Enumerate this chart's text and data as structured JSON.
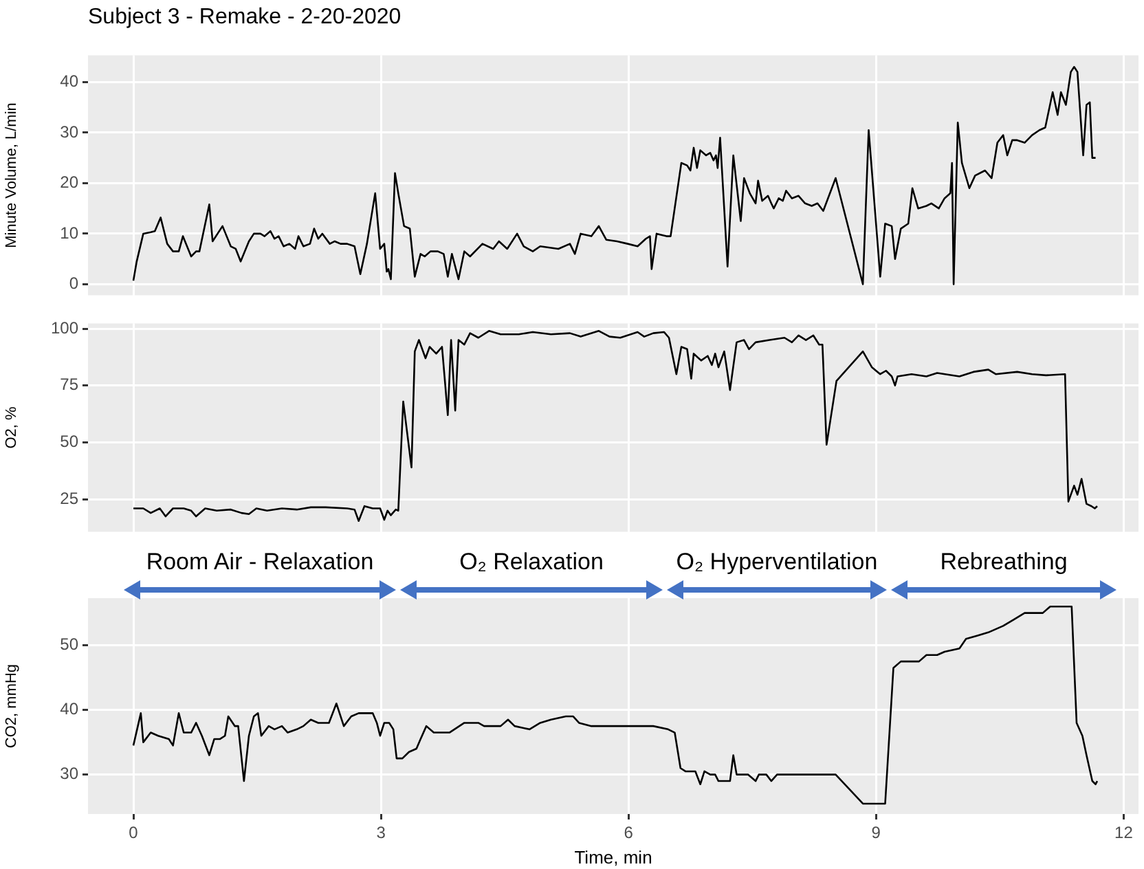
{
  "chart_data": [
    {
      "type": "line",
      "title": "Subject 3 - Remake - 2-20-2020",
      "ylabel": "Minute Volume, L/min",
      "color": "#000000",
      "grid": true,
      "tick_labels": "y",
      "xlim": [
        -0.55,
        12.18
      ],
      "xticks": [
        0,
        3,
        6,
        9,
        12
      ],
      "ylim": [
        -2.2,
        45.3
      ],
      "yticks": [
        0,
        10,
        20,
        30,
        40
      ],
      "x": [
        0,
        0.04,
        0.12,
        0.21,
        0.26,
        0.33,
        0.41,
        0.48,
        0.55,
        0.6,
        0.7,
        0.76,
        0.8,
        0.92,
        0.96,
        1.08,
        1.18,
        1.24,
        1.3,
        1.4,
        1.46,
        1.54,
        1.59,
        1.66,
        1.71,
        1.76,
        1.82,
        1.89,
        1.96,
        2.0,
        2.06,
        2.14,
        2.19,
        2.24,
        2.29,
        2.38,
        2.44,
        2.51,
        2.59,
        2.68,
        2.75,
        2.83,
        2.93,
        2.99,
        3.04,
        3.07,
        3.09,
        3.12,
        3.17,
        3.21,
        3.28,
        3.35,
        3.41,
        3.48,
        3.53,
        3.6,
        3.69,
        3.76,
        3.81,
        3.86,
        3.94,
        4.01,
        4.08,
        4.23,
        4.36,
        4.43,
        4.53,
        4.65,
        4.73,
        4.84,
        4.93,
        5.15,
        5.29,
        5.35,
        5.42,
        5.55,
        5.64,
        5.73,
        5.86,
        5.99,
        6.11,
        6.21,
        6.26,
        6.28,
        6.34,
        6.46,
        6.51,
        6.64,
        6.71,
        6.75,
        6.79,
        6.83,
        6.87,
        6.94,
        6.99,
        7.03,
        7.06,
        7.08,
        7.11,
        7.2,
        7.27,
        7.36,
        7.4,
        7.47,
        7.54,
        7.57,
        7.62,
        7.69,
        7.73,
        7.76,
        7.82,
        7.87,
        7.91,
        7.98,
        8.06,
        8.14,
        8.22,
        8.29,
        8.36,
        8.51,
        8.84,
        8.91,
        9.05,
        9.11,
        9.19,
        9.23,
        9.3,
        9.39,
        9.44,
        9.51,
        9.61,
        9.67,
        9.76,
        9.83,
        9.9,
        9.92,
        9.94,
        9.99,
        10.04,
        10.13,
        10.2,
        10.32,
        10.4,
        10.47,
        10.54,
        10.59,
        10.65,
        10.71,
        10.8,
        10.89,
        10.98,
        11.05,
        11.14,
        11.2,
        11.24,
        11.3,
        11.36,
        11.4,
        11.44,
        11.51,
        11.55,
        11.59,
        11.62,
        11.66
      ],
      "values": [
        0.7,
        4.5,
        10,
        10.3,
        10.5,
        13.2,
        8,
        6.5,
        6.5,
        9.5,
        5.5,
        6.5,
        6.5,
        15.8,
        8.5,
        11.5,
        7.5,
        7,
        4.5,
        8.5,
        10,
        10,
        9.5,
        10.5,
        9,
        9.5,
        7.5,
        8,
        7,
        9.5,
        7.5,
        8,
        11,
        9,
        10,
        8,
        8.5,
        8,
        8,
        7.5,
        2,
        8,
        18,
        7,
        8,
        2.5,
        3,
        1,
        22,
        18,
        11.5,
        11,
        1.5,
        6,
        5.5,
        6.5,
        6.5,
        6,
        1.5,
        6,
        1,
        6.5,
        5.5,
        8,
        7,
        8.5,
        7,
        10,
        7.5,
        6.5,
        7.5,
        7,
        8,
        6,
        10,
        9.5,
        11.5,
        8.8,
        8.5,
        8,
        7.5,
        9,
        9.5,
        3,
        10,
        9.5,
        9.5,
        24,
        23.5,
        22.5,
        27,
        23,
        26.5,
        25.5,
        26,
        24.5,
        25.5,
        23,
        29,
        3.5,
        25.5,
        12.5,
        21,
        18,
        16,
        20.5,
        16.5,
        17.5,
        16,
        15,
        17,
        16.5,
        18.5,
        17,
        17.5,
        16,
        15.5,
        16,
        14.5,
        21,
        0,
        30.5,
        1.5,
        12,
        11.5,
        5,
        11,
        12,
        19,
        15,
        15.5,
        16,
        15,
        17,
        18,
        24,
        0,
        32,
        24,
        19,
        21.5,
        22.5,
        21,
        28,
        29.5,
        25.5,
        28.5,
        28.5,
        28,
        29.5,
        30.5,
        31,
        38,
        33.5,
        38,
        35.5,
        42,
        43,
        42,
        25.5,
        35.5,
        36,
        25,
        25
      ]
    },
    {
      "type": "line",
      "ylabel": "O2, %",
      "color": "#000000",
      "grid": true,
      "tick_labels": "y",
      "xlim": [
        -0.55,
        12.18
      ],
      "xticks": [
        0,
        3,
        6,
        9,
        12
      ],
      "ylim": [
        10.7,
        102.3
      ],
      "yticks": [
        25,
        50,
        75,
        100
      ],
      "x": [
        0,
        0.12,
        0.21,
        0.32,
        0.39,
        0.48,
        0.61,
        0.7,
        0.76,
        0.87,
        1.01,
        1.18,
        1.31,
        1.4,
        1.49,
        1.62,
        1.8,
        1.98,
        2.15,
        2.33,
        2.59,
        2.68,
        2.73,
        2.8,
        2.9,
        2.99,
        3.04,
        3.08,
        3.12,
        3.18,
        3.21,
        3.27,
        3.37,
        3.41,
        3.46,
        3.54,
        3.59,
        3.67,
        3.74,
        3.81,
        3.85,
        3.9,
        3.94,
        4.01,
        4.08,
        4.18,
        4.31,
        4.45,
        4.67,
        4.84,
        5.06,
        5.29,
        5.42,
        5.64,
        5.77,
        5.9,
        6.11,
        6.19,
        6.3,
        6.43,
        6.49,
        6.58,
        6.64,
        6.71,
        6.76,
        6.79,
        6.88,
        6.96,
        7.01,
        7.05,
        7.09,
        7.16,
        7.23,
        7.31,
        7.4,
        7.46,
        7.54,
        7.71,
        7.89,
        7.98,
        8.06,
        8.15,
        8.24,
        8.31,
        8.35,
        8.4,
        8.52,
        8.84,
        8.95,
        9.05,
        9.12,
        9.19,
        9.23,
        9.26,
        9.43,
        9.61,
        9.74,
        10.01,
        10.18,
        10.36,
        10.45,
        10.71,
        10.89,
        11.06,
        11.29,
        11.33,
        11.4,
        11.44,
        11.49,
        11.55,
        11.61,
        11.65,
        11.68
      ],
      "values": [
        21,
        21,
        19,
        21,
        17.5,
        21,
        21,
        20,
        17.5,
        21,
        20,
        20.5,
        19,
        18.5,
        21,
        20,
        21,
        20.5,
        21.5,
        21.5,
        21,
        20.5,
        15.5,
        22,
        21,
        21,
        16,
        20,
        18,
        20.5,
        20,
        68,
        39,
        90,
        95,
        87,
        92,
        89,
        92,
        62,
        95,
        64,
        95,
        93,
        98,
        96,
        99,
        97.5,
        97.5,
        98.5,
        97.5,
        98,
        96.5,
        99,
        96.5,
        96,
        98.5,
        96.5,
        98,
        98.5,
        96,
        80,
        92,
        91,
        78,
        89,
        86,
        88,
        84,
        89,
        83,
        90,
        73,
        94,
        95,
        91,
        94,
        95,
        96,
        94,
        97,
        95,
        97,
        93,
        93,
        49,
        77,
        90,
        83,
        80,
        81.5,
        79,
        75,
        79,
        80,
        79,
        80.5,
        79,
        81,
        82,
        80,
        81,
        80,
        79.5,
        80,
        24,
        31,
        27,
        34,
        23,
        22,
        21,
        22
      ]
    },
    {
      "type": "line",
      "xlabel": "Time, min",
      "ylabel": "CO2, mmHg",
      "color": "#000000",
      "grid": true,
      "xlim": [
        -0.55,
        12.18
      ],
      "xticks": [
        0,
        3,
        6,
        9,
        12
      ],
      "ylim": [
        23.9,
        57.3
      ],
      "yticks": [
        30,
        40,
        50
      ],
      "x": [
        0,
        0.09,
        0.12,
        0.21,
        0.3,
        0.43,
        0.48,
        0.55,
        0.61,
        0.7,
        0.76,
        0.83,
        0.92,
        0.98,
        1.05,
        1.11,
        1.15,
        1.23,
        1.27,
        1.34,
        1.4,
        1.46,
        1.51,
        1.55,
        1.64,
        1.71,
        1.8,
        1.87,
        1.98,
        2.06,
        2.15,
        2.24,
        2.37,
        2.46,
        2.55,
        2.64,
        2.73,
        2.9,
        2.95,
        2.99,
        3.04,
        3.1,
        3.15,
        3.19,
        3.26,
        3.34,
        3.43,
        3.48,
        3.55,
        3.64,
        3.83,
        4.01,
        4.18,
        4.25,
        4.45,
        4.54,
        4.62,
        4.8,
        4.93,
        5.06,
        5.24,
        5.33,
        5.4,
        5.55,
        6.3,
        6.48,
        6.56,
        6.63,
        6.69,
        6.81,
        6.87,
        6.92,
        6.99,
        7.05,
        7.09,
        7.23,
        7.27,
        7.31,
        7.45,
        7.54,
        7.58,
        7.67,
        7.73,
        7.8,
        8.51,
        8.84,
        9.11,
        9.21,
        9.3,
        9.52,
        9.61,
        9.74,
        9.83,
        10.01,
        10.09,
        10.23,
        10.36,
        10.54,
        10.67,
        10.8,
        11.02,
        11.11,
        11.37,
        11.43,
        11.5,
        11.55,
        11.62,
        11.66,
        11.68
      ],
      "values": [
        34.5,
        39.5,
        35,
        36.5,
        36,
        35.5,
        34.5,
        39.5,
        36.5,
        36.5,
        38,
        36,
        33,
        35.5,
        35.5,
        36,
        39,
        37.5,
        37.5,
        29,
        36,
        39,
        39.5,
        36,
        37.5,
        37,
        37.5,
        36.5,
        37,
        37.5,
        38.5,
        38,
        38,
        41,
        37.5,
        39,
        39.5,
        39.5,
        38,
        36,
        38,
        38,
        37,
        32.5,
        32.5,
        33.5,
        34,
        35.5,
        37.5,
        36.5,
        36.5,
        38,
        38,
        37.5,
        37.5,
        38.5,
        37.5,
        37,
        38,
        38.5,
        39,
        39,
        38,
        37.5,
        37.5,
        37,
        36.5,
        31,
        30.5,
        30.5,
        28.5,
        30.5,
        30,
        30,
        29,
        29,
        33,
        30,
        30,
        29,
        30,
        30,
        29,
        30,
        30,
        25.5,
        25.5,
        46.5,
        47.5,
        47.5,
        48.5,
        48.5,
        49,
        49.5,
        51,
        51.5,
        52,
        53,
        54,
        55,
        55,
        56,
        56,
        38,
        36,
        33,
        29,
        28.5,
        29
      ],
      "annotations": [
        "Room Air - Relaxation",
        "O₂ Relaxation",
        "O₂ Hyperventilation",
        "Rebreathing"
      ]
    }
  ]
}
